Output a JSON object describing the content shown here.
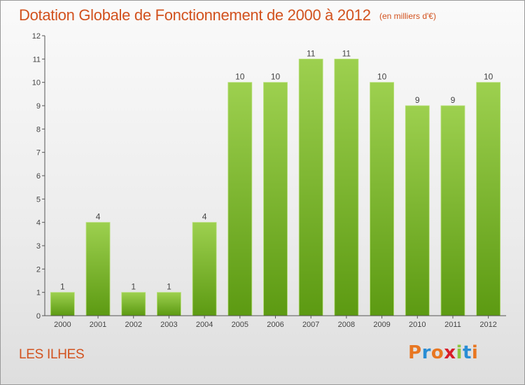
{
  "header": {
    "title": "Dotation Globale de Fonctionnement de 2000 à 2012",
    "subtitle": "(en milliers d'€)"
  },
  "footer": {
    "commune": "LES ILHES",
    "logo": "Proxiti",
    "logo_colors": [
      "#e87722",
      "#2a8dd4",
      "#e87722",
      "#d81e2a",
      "#8cc63f",
      "#2a8dd4",
      "#e87722"
    ]
  },
  "colors": {
    "title": "#d2521e",
    "bar_top": "#9dd04f",
    "bar_bottom": "#5c9a12",
    "axis": "#555555"
  },
  "chart_data": {
    "type": "bar",
    "title": "Dotation Globale de Fonctionnement de 2000 à 2012",
    "subtitle": "(en milliers d'€)",
    "xlabel": "",
    "ylabel": "",
    "categories": [
      "2000",
      "2001",
      "2002",
      "2003",
      "2004",
      "2005",
      "2006",
      "2007",
      "2008",
      "2009",
      "2010",
      "2011",
      "2012"
    ],
    "values": [
      1,
      4,
      1,
      1,
      4,
      10,
      10,
      11,
      11,
      10,
      9,
      9,
      10
    ],
    "ylim": [
      0,
      12
    ],
    "yticks": [
      0,
      1,
      2,
      3,
      4,
      5,
      6,
      7,
      8,
      9,
      10,
      11,
      12
    ],
    "grid": false,
    "legend": "none"
  }
}
